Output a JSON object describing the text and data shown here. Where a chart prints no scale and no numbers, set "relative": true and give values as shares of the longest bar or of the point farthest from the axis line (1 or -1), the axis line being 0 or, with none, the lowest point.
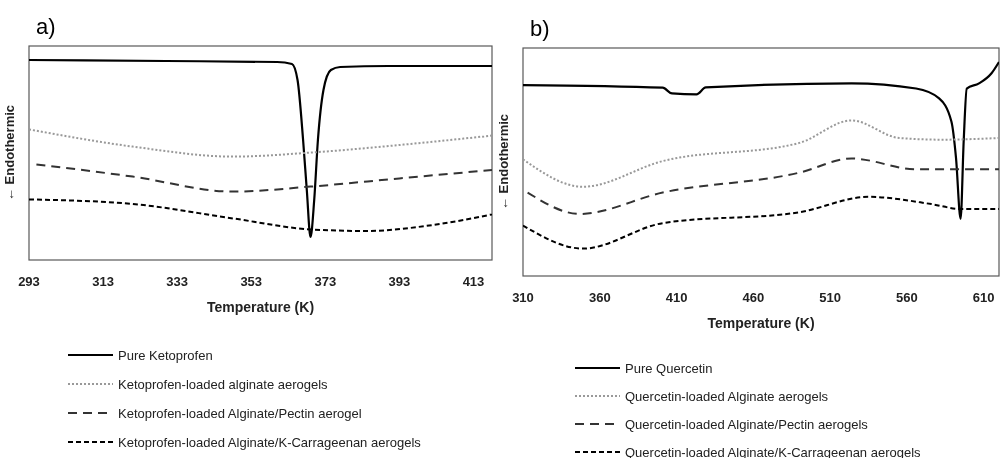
{
  "chart_data": [
    {
      "type": "line",
      "title": "a)",
      "xlabel": "Temperature (K)",
      "ylabel": "← Endothermic",
      "relative": true,
      "xlim": [
        293,
        418
      ],
      "xticks": [
        293,
        313,
        333,
        353,
        373,
        393,
        413
      ],
      "tick_labels": "x",
      "grid": false,
      "legend": "bottom",
      "marker": "none",
      "series": [
        {
          "name": "Pure Ketoprofen",
          "color": "#000000",
          "line_style": "solid",
          "x": [
            293,
            330,
            360,
            364,
            365.5,
            367,
            368,
            369,
            370,
            371,
            372.5,
            374.5,
            377,
            390,
            418
          ],
          "values": [
            1.0,
            0.995,
            0.99,
            0.98,
            0.9,
            0.6,
            0.35,
            0.115,
            0.3,
            0.6,
            0.85,
            0.95,
            0.965,
            0.97,
            0.97
          ]
        },
        {
          "name": "Ketoprofen-loaded alginate aerogels",
          "color": "#999999",
          "line_style": "dotted",
          "x": [
            293,
            321,
            348,
            369,
            393,
            418
          ],
          "values": [
            0.653,
            0.567,
            0.517,
            0.537,
            0.575,
            0.622
          ]
        },
        {
          "name": "Ketoprofen-loaded Alginate/Pectin aerogel",
          "color": "#333333",
          "line_style": "dashed",
          "x": [
            295,
            321,
            348,
            369,
            393,
            418
          ],
          "values": [
            0.478,
            0.417,
            0.342,
            0.367,
            0.408,
            0.45
          ]
        },
        {
          "name": "Ketoprofen-loaded Alginate/K-Carrageenan aerogels",
          "color": "#000000",
          "line_style": "dashed",
          "x": [
            293,
            321,
            348,
            369,
            384,
            402,
            418
          ],
          "values": [
            0.303,
            0.28,
            0.208,
            0.153,
            0.145,
            0.175,
            0.228
          ]
        }
      ]
    },
    {
      "type": "line",
      "title": "b)",
      "xlabel": "Temperature (K)",
      "ylabel": "← Endothermic",
      "relative": true,
      "xlim": [
        310,
        620
      ],
      "xticks": [
        310,
        360,
        410,
        460,
        510,
        560,
        610
      ],
      "tick_labels": "x",
      "grid": false,
      "legend": "bottom",
      "marker": "none",
      "series": [
        {
          "name": "Pure Quercetin",
          "color": "#000000",
          "line_style": "solid",
          "x": [
            310,
            401,
            407,
            423,
            429,
            524,
            566,
            581,
            589,
            592,
            595,
            597,
            599,
            607,
            615,
            620
          ],
          "values": [
            0.892,
            0.88,
            0.853,
            0.849,
            0.881,
            0.9,
            0.876,
            0.83,
            0.722,
            0.552,
            0.267,
            0.63,
            0.876,
            0.9,
            0.946,
            1.0
          ]
        },
        {
          "name": "Quercetin-loaded Alginate aerogels",
          "color": "#999999",
          "line_style": "dotted",
          "x": [
            310,
            349,
            401,
            490,
            524,
            555,
            583,
            620
          ],
          "values": [
            0.545,
            0.417,
            0.537,
            0.622,
            0.727,
            0.645,
            0.637,
            0.645
          ]
        },
        {
          "name": "Quercetin-loaded Alginate/Pectin aerogels",
          "color": "#333333",
          "line_style": "dashed",
          "x": [
            313,
            347,
            401,
            490,
            524,
            566,
            620
          ],
          "values": [
            0.39,
            0.29,
            0.39,
            0.483,
            0.549,
            0.499,
            0.499
          ]
        },
        {
          "name": "Quercetin-loaded Alginate/K-Carrageenan aerogels",
          "color": "#000000",
          "line_style": "dashed",
          "x": [
            310,
            349,
            401,
            490,
            535,
            576,
            595,
            620
          ],
          "values": [
            0.236,
            0.128,
            0.247,
            0.298,
            0.37,
            0.336,
            0.313,
            0.313
          ]
        }
      ]
    }
  ]
}
